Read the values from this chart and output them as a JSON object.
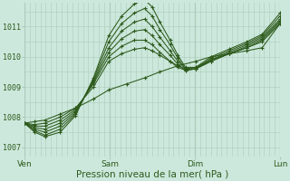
{
  "bg_color": "#cce8dc",
  "grid_color": "#aaccba",
  "line_color": "#2d5a1b",
  "marker_color": "#2d5a1b",
  "xlabel": "Pression niveau de la mer( hPa )",
  "xlabel_fontsize": 7.5,
  "yticks": [
    1007,
    1008,
    1009,
    1010,
    1011
  ],
  "xtick_labels": [
    "Ven",
    "Sam",
    "Dim",
    "Lun"
  ],
  "xtick_positions": [
    0,
    0.333,
    0.667,
    1.0
  ],
  "ylim": [
    1006.7,
    1011.8
  ],
  "series": [
    {
      "x": [
        0.0,
        0.04,
        0.08,
        0.14,
        0.2,
        0.27,
        0.33,
        0.4,
        0.47,
        0.53,
        0.6,
        0.67,
        0.73,
        0.8,
        0.87,
        0.93,
        1.0
      ],
      "y": [
        1007.8,
        1007.85,
        1007.9,
        1008.1,
        1008.3,
        1008.6,
        1008.9,
        1009.1,
        1009.3,
        1009.5,
        1009.7,
        1009.85,
        1010.0,
        1010.1,
        1010.2,
        1010.3,
        1011.1
      ]
    },
    {
      "x": [
        0.0,
        0.04,
        0.08,
        0.14,
        0.2,
        0.27,
        0.33,
        0.38,
        0.43,
        0.47,
        0.5,
        0.53,
        0.57,
        0.6,
        0.63,
        0.67,
        0.73,
        0.8,
        0.87,
        0.93,
        1.0
      ],
      "y": [
        1007.8,
        1007.75,
        1007.8,
        1008.0,
        1008.3,
        1009.0,
        1009.85,
        1010.1,
        1010.25,
        1010.3,
        1010.2,
        1010.05,
        1009.85,
        1009.7,
        1009.6,
        1009.65,
        1009.9,
        1010.1,
        1010.3,
        1010.5,
        1011.1
      ]
    },
    {
      "x": [
        0.0,
        0.04,
        0.08,
        0.14,
        0.2,
        0.27,
        0.33,
        0.38,
        0.43,
        0.47,
        0.5,
        0.53,
        0.57,
        0.6,
        0.63,
        0.67,
        0.73,
        0.8,
        0.87,
        0.93,
        1.0
      ],
      "y": [
        1007.8,
        1007.7,
        1007.7,
        1007.9,
        1008.25,
        1009.1,
        1010.0,
        1010.35,
        1010.55,
        1010.55,
        1010.4,
        1010.15,
        1009.85,
        1009.65,
        1009.55,
        1009.6,
        1009.85,
        1010.1,
        1010.3,
        1010.55,
        1011.15
      ]
    },
    {
      "x": [
        0.0,
        0.04,
        0.08,
        0.14,
        0.2,
        0.27,
        0.33,
        0.38,
        0.43,
        0.47,
        0.5,
        0.53,
        0.57,
        0.6,
        0.63,
        0.67,
        0.73,
        0.8,
        0.87,
        0.93,
        1.0
      ],
      "y": [
        1007.8,
        1007.65,
        1007.6,
        1007.8,
        1008.2,
        1009.15,
        1010.15,
        1010.6,
        1010.85,
        1010.9,
        1010.7,
        1010.4,
        1010.05,
        1009.75,
        1009.55,
        1009.6,
        1009.85,
        1010.1,
        1010.35,
        1010.6,
        1011.2
      ]
    },
    {
      "x": [
        0.0,
        0.04,
        0.08,
        0.14,
        0.2,
        0.27,
        0.33,
        0.38,
        0.43,
        0.47,
        0.5,
        0.53,
        0.57,
        0.6,
        0.63,
        0.67,
        0.73,
        0.8,
        0.87,
        0.93,
        1.0
      ],
      "y": [
        1007.8,
        1007.6,
        1007.5,
        1007.7,
        1008.15,
        1009.2,
        1010.3,
        1010.85,
        1011.15,
        1011.25,
        1011.0,
        1010.65,
        1010.2,
        1009.85,
        1009.6,
        1009.6,
        1009.9,
        1010.15,
        1010.4,
        1010.65,
        1011.25
      ]
    },
    {
      "x": [
        0.0,
        0.04,
        0.08,
        0.14,
        0.2,
        0.27,
        0.33,
        0.38,
        0.43,
        0.47,
        0.5,
        0.53,
        0.57,
        0.6,
        0.63,
        0.67,
        0.73,
        0.8,
        0.87,
        0.93,
        1.0
      ],
      "y": [
        1007.8,
        1007.55,
        1007.4,
        1007.6,
        1008.1,
        1009.25,
        1010.5,
        1011.1,
        1011.45,
        1011.6,
        1011.35,
        1010.9,
        1010.4,
        1009.95,
        1009.6,
        1009.6,
        1009.95,
        1010.2,
        1010.45,
        1010.7,
        1011.35
      ]
    },
    {
      "x": [
        0.0,
        0.04,
        0.08,
        0.14,
        0.2,
        0.27,
        0.33,
        0.38,
        0.43,
        0.47,
        0.5,
        0.53,
        0.57,
        0.6,
        0.63,
        0.67,
        0.73,
        0.8,
        0.87,
        0.93,
        1.0
      ],
      "y": [
        1007.8,
        1007.5,
        1007.35,
        1007.5,
        1008.05,
        1009.3,
        1010.7,
        1011.35,
        1011.75,
        1011.9,
        1011.65,
        1011.15,
        1010.55,
        1010.05,
        1009.65,
        1009.65,
        1010.0,
        1010.25,
        1010.5,
        1010.75,
        1011.45
      ]
    }
  ]
}
